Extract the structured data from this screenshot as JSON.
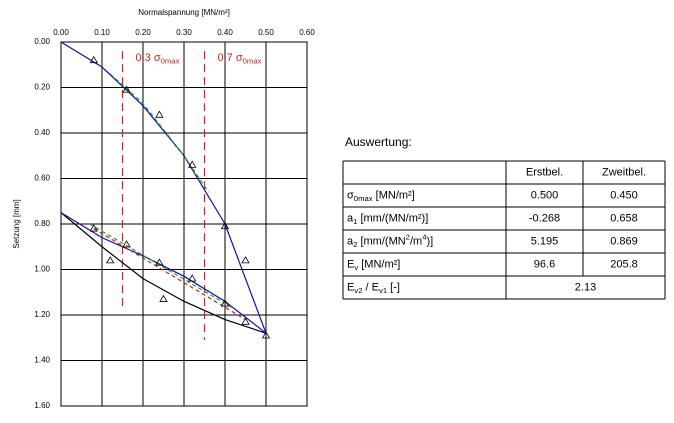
{
  "chart_data": {
    "type": "line",
    "x_label": "Normalspannung [MN/m²]",
    "y_label": "Setzung [mm]",
    "x_axis_position": "top",
    "y_inverted": true,
    "grid": true,
    "xlim": [
      0,
      0.6
    ],
    "xticks": [
      {
        "value": 0,
        "label": "0.00"
      },
      {
        "value": 0.1,
        "label": "0.10"
      },
      {
        "value": 0.2,
        "label": "0.20"
      },
      {
        "value": 0.3,
        "label": "0.30"
      },
      {
        "value": 0.4,
        "label": "0.40"
      },
      {
        "value": 0.5,
        "label": "0.50"
      },
      {
        "value": 0.6,
        "label": "0.60"
      }
    ],
    "ylim": [
      0,
      1.6
    ],
    "yticks": [
      {
        "value": 0,
        "label": "0.00"
      },
      {
        "value": 0.2,
        "label": "0.20"
      },
      {
        "value": 0.4,
        "label": "0.40"
      },
      {
        "value": 0.6,
        "label": "0.60"
      },
      {
        "value": 0.8,
        "label": "0.80"
      },
      {
        "value": 1,
        "label": "1.00"
      },
      {
        "value": 1.2,
        "label": "1.20"
      },
      {
        "value": 1.4,
        "label": "1.40"
      },
      {
        "value": 1.6,
        "label": "1.60"
      }
    ],
    "series": [
      {
        "color": "#1010b0",
        "dash": false,
        "marker": false,
        "x": [
          0,
          0.1,
          0.2,
          0.3,
          0.4,
          0.5
        ],
        "values": [
          0,
          0.11,
          0.28,
          0.5,
          0.8,
          1.28
        ]
      },
      {
        "color": "#20a020",
        "dash": true,
        "marker": false,
        "x": [
          0.12,
          0.2,
          0.3,
          0.36
        ],
        "values": [
          0.14,
          0.27,
          0.5,
          0.66
        ]
      },
      {
        "color": "#000000",
        "dash": false,
        "marker": false,
        "x": [
          0,
          0.1,
          0.2,
          0.3,
          0.4,
          0.5
        ],
        "values": [
          0.75,
          0.9,
          1.04,
          1.14,
          1.22,
          1.28
        ]
      },
      {
        "color": "#1010b0",
        "dash": false,
        "marker": false,
        "x": [
          0,
          0.1,
          0.2,
          0.3,
          0.4,
          0.5
        ],
        "values": [
          0.75,
          0.86,
          0.94,
          1.03,
          1.14,
          1.28
        ]
      },
      {
        "color": "#d02020",
        "dash": true,
        "marker": false,
        "x": [
          0.08,
          0.45
        ],
        "values": [
          0.82,
          1.22
        ]
      },
      {
        "color": "#20a020",
        "dash": true,
        "marker": false,
        "x": [
          0.07,
          0.42
        ],
        "values": [
          0.8,
          1.17
        ]
      },
      {
        "color": "#000000",
        "dash": false,
        "marker": true,
        "x": [
          0.08,
          0.16,
          0.24,
          0.32,
          0.4,
          0.45,
          0.5
        ],
        "values": [
          0.08,
          0.21,
          0.32,
          0.54,
          0.81,
          0.96,
          1.29
        ]
      },
      {
        "color": "#000000",
        "dash": false,
        "marker": true,
        "x": [
          0.25,
          0.12,
          0.08,
          0.16,
          0.24,
          0.32,
          0.4,
          0.45
        ],
        "values": [
          1.13,
          0.96,
          0.82,
          0.89,
          0.97,
          1.04,
          1.15,
          1.23
        ]
      }
    ],
    "vlines": [
      {
        "x": 0.15,
        "y": [
          0.04,
          1.18
        ],
        "color": "#d02020",
        "label": [
          "0,3 σ",
          {
            "sub": "0max"
          }
        ]
      },
      {
        "x": 0.35,
        "y": [
          0.04,
          1.31
        ],
        "color": "#d02020",
        "label": [
          "0,7 σ",
          {
            "sub": "0max"
          }
        ]
      }
    ]
  },
  "table": {
    "title": "Auswertung:",
    "header": [
      "Erstbel.",
      "Zweitbel."
    ],
    "rows": [
      {
        "label": [
          "σ",
          {
            "sub": "0max"
          },
          " [MN/m²]"
        ],
        "cells": [
          "0.500",
          "0.450"
        ]
      },
      {
        "label": [
          "a",
          {
            "sub": "1"
          },
          " [mm/(MN/m²)]"
        ],
        "cells": [
          "-0.268",
          "0.658"
        ]
      },
      {
        "label": [
          "a",
          {
            "sub": "2"
          },
          " [mm/(MN",
          {
            "sup": "2"
          },
          "/m",
          {
            "sup": "4"
          },
          ")]"
        ],
        "cells": [
          "5.195",
          "0.869"
        ]
      },
      {
        "label": [
          "E",
          {
            "sub": "v"
          },
          " [MN/m²]"
        ],
        "cells": [
          "96.6",
          "205.8"
        ]
      },
      {
        "label": [
          "E",
          {
            "sub": "v2"
          },
          " / E",
          {
            "sub": "v1"
          },
          " [-]"
        ],
        "cells": [
          "2.13"
        ]
      }
    ]
  }
}
